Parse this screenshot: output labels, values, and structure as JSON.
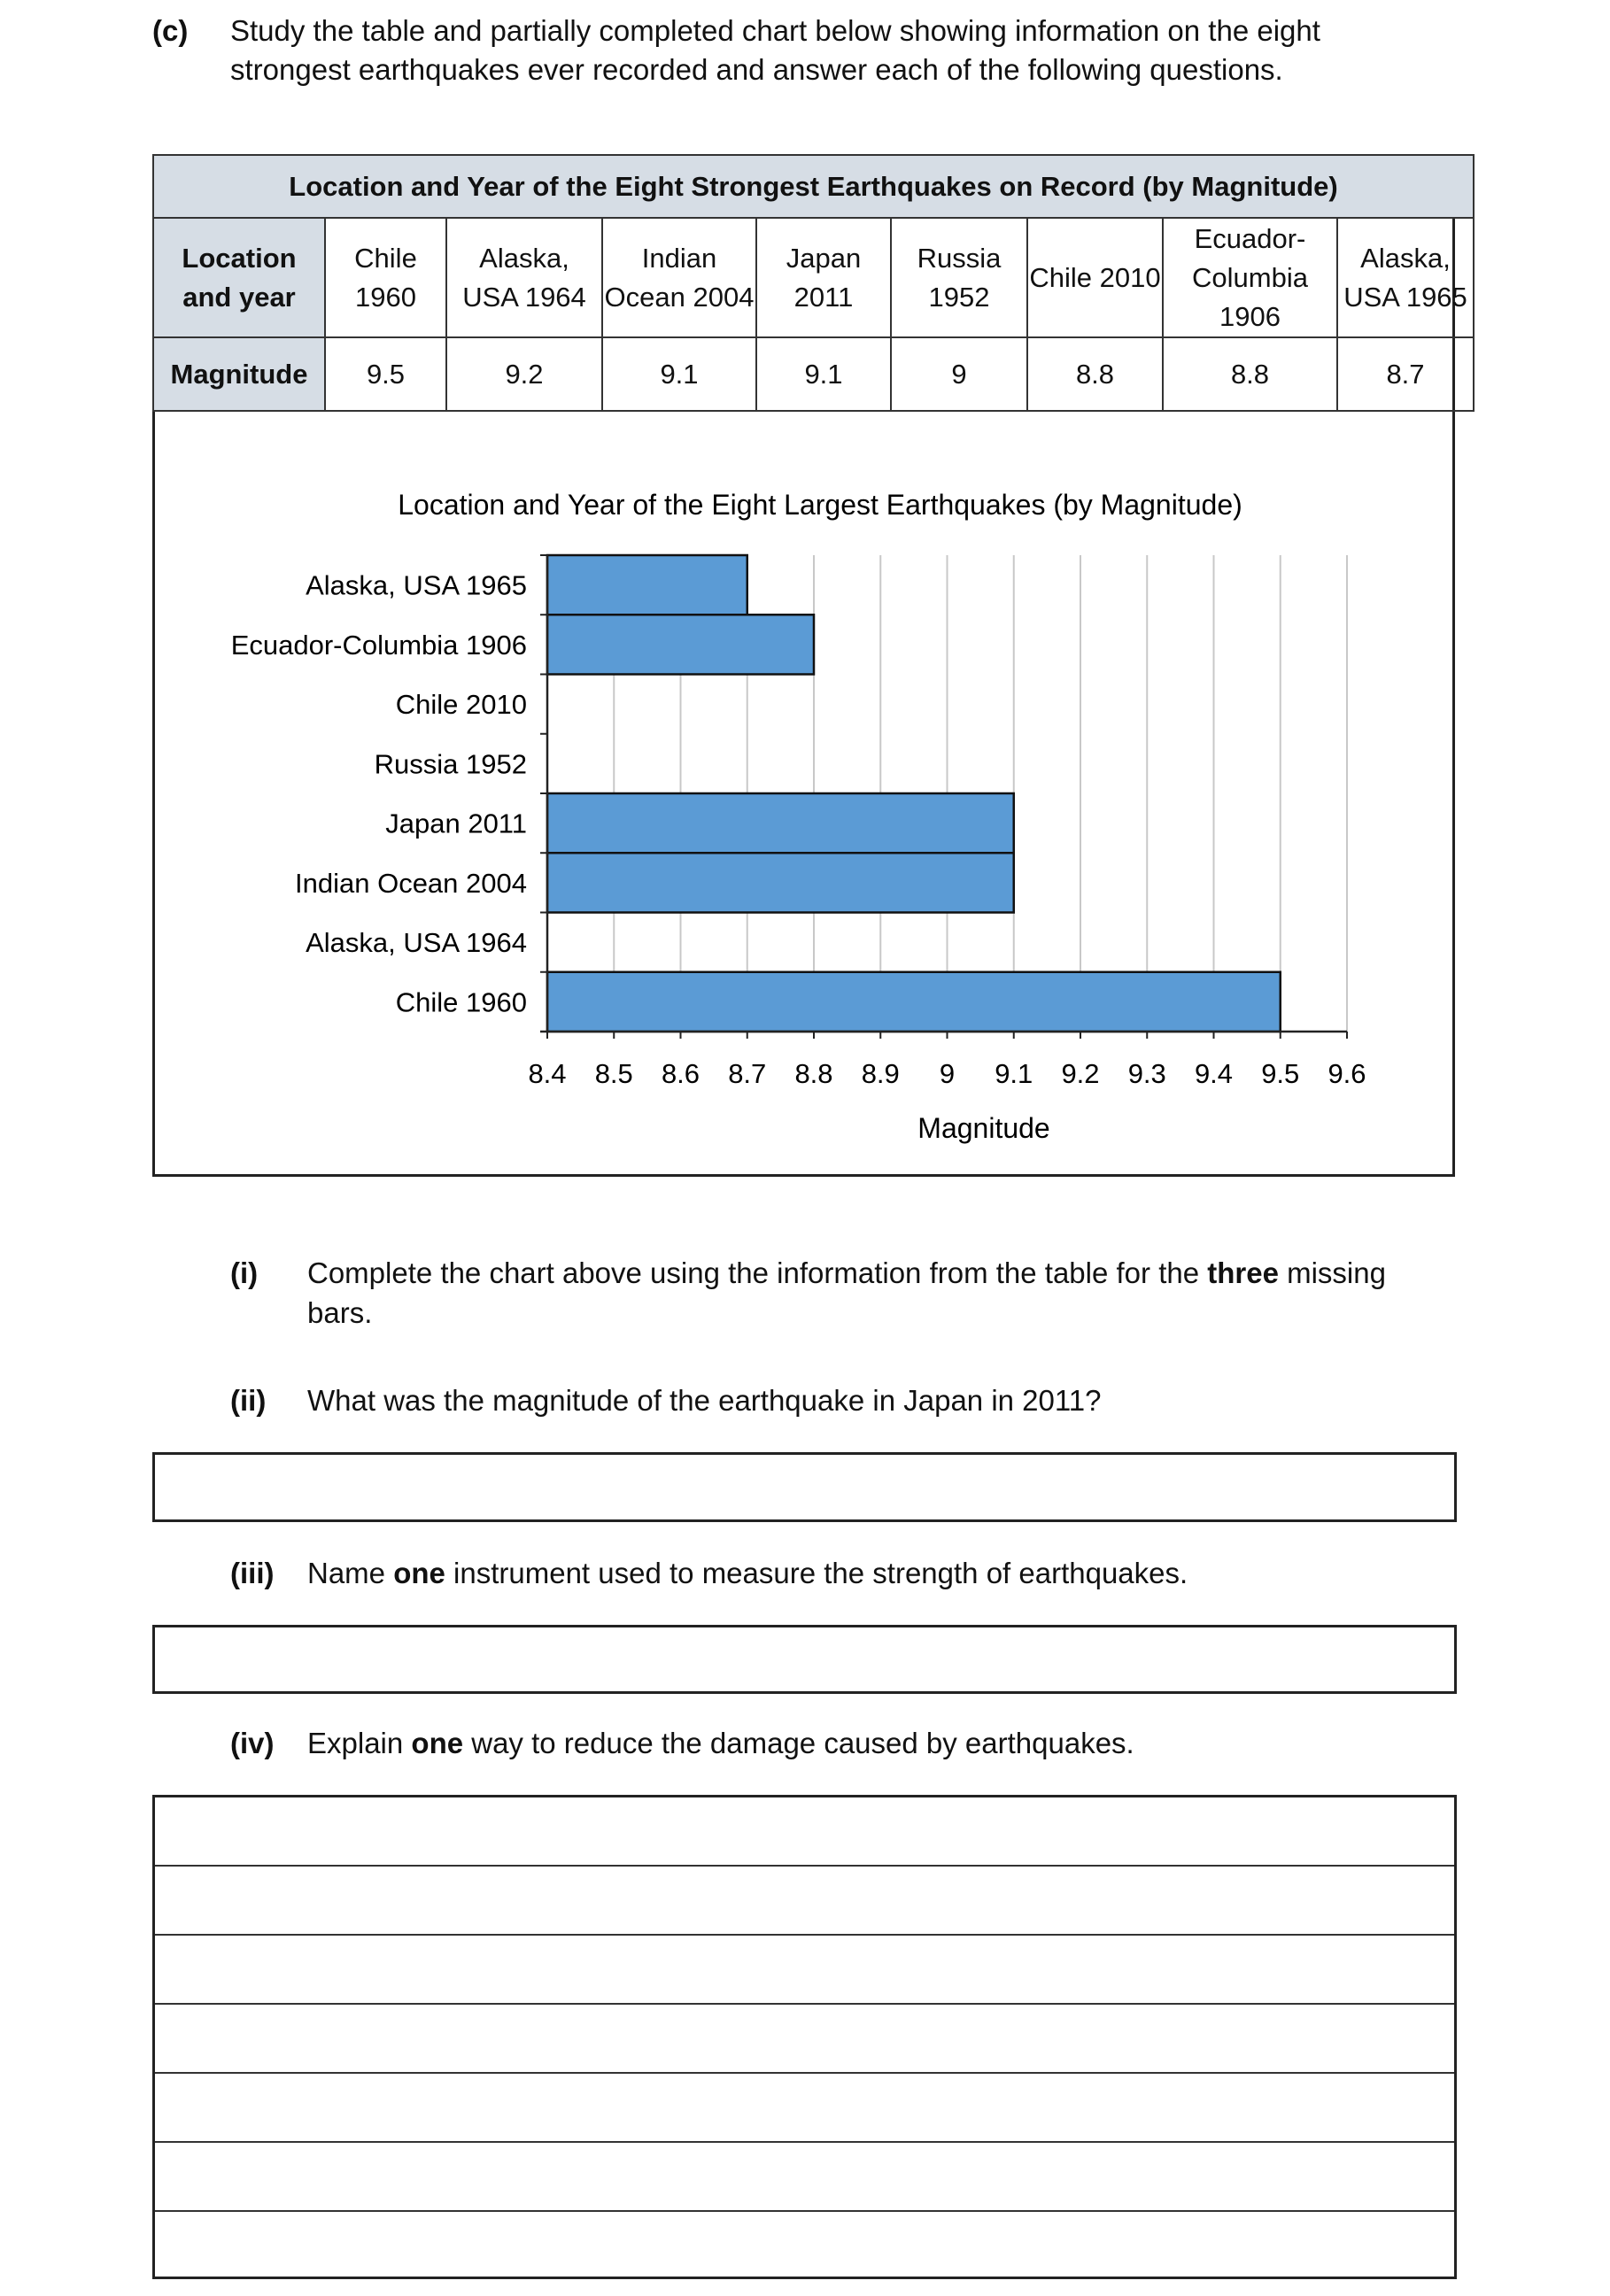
{
  "question": {
    "label": "(c)",
    "intro_lines": [
      "Study the table and partially completed chart below showing information on the eight",
      "strongest earthquakes ever recorded and answer each of the following questions."
    ]
  },
  "table": {
    "title": "Location and Year of the Eight Strongest Earthquakes on Record (by Magnitude)",
    "row_header_location": "Location and year",
    "row_header_magnitude": "Magnitude",
    "locations": [
      "Chile 1960",
      "Alaska, USA 1964",
      "Indian Ocean 2004",
      "Japan 2011",
      "Russia 1952",
      "Chile 2010",
      "Ecuador-Columbia 1906",
      "Alaska, USA 1965"
    ],
    "magnitudes": [
      "9.5",
      "9.2",
      "9.1",
      "9.1",
      "9",
      "8.8",
      "8.8",
      "8.7"
    ]
  },
  "chart_data": {
    "type": "bar",
    "orientation": "horizontal",
    "title": "Location and Year of the Eight Largest Earthquakes (by Magnitude)",
    "xlabel": "Magnitude",
    "ylabel": "",
    "categories": [
      "Alaska, USA 1965",
      "Ecuador-Columbia 1906",
      "Chile 2010",
      "Russia 1952",
      "Japan 2011",
      "Indian Ocean 2004",
      "Alaska, USA 1964",
      "Chile 1960"
    ],
    "values": [
      8.7,
      8.8,
      null,
      null,
      9.1,
      9.1,
      null,
      9.5
    ],
    "xlim": [
      8.4,
      9.6
    ],
    "xticks": [
      "8.4",
      "8.5",
      "8.6",
      "8.7",
      "8.8",
      "8.9",
      "9",
      "9.1",
      "9.2",
      "9.3",
      "9.4",
      "9.5",
      "9.6"
    ],
    "grid": true,
    "bar_color": "#5b9bd5"
  },
  "parts": [
    {
      "label": "(i)",
      "lines": [
        [
          "Complete the chart above using the information from the table for the ",
          "three",
          " missing"
        ],
        [
          "bars.",
          "",
          ""
        ]
      ]
    },
    {
      "label": "(ii)",
      "lines": [
        [
          "What was the magnitude of the earthquake in Japan in 2011?",
          "",
          ""
        ]
      ]
    },
    {
      "label": "(iii)",
      "lines": [
        [
          "Name ",
          "one",
          " instrument used to measure the strength of earthquakes."
        ]
      ]
    },
    {
      "label": "(iv)",
      "lines": [
        [
          "Explain ",
          "one",
          " way to reduce the damage caused by earthquakes."
        ]
      ]
    }
  ]
}
